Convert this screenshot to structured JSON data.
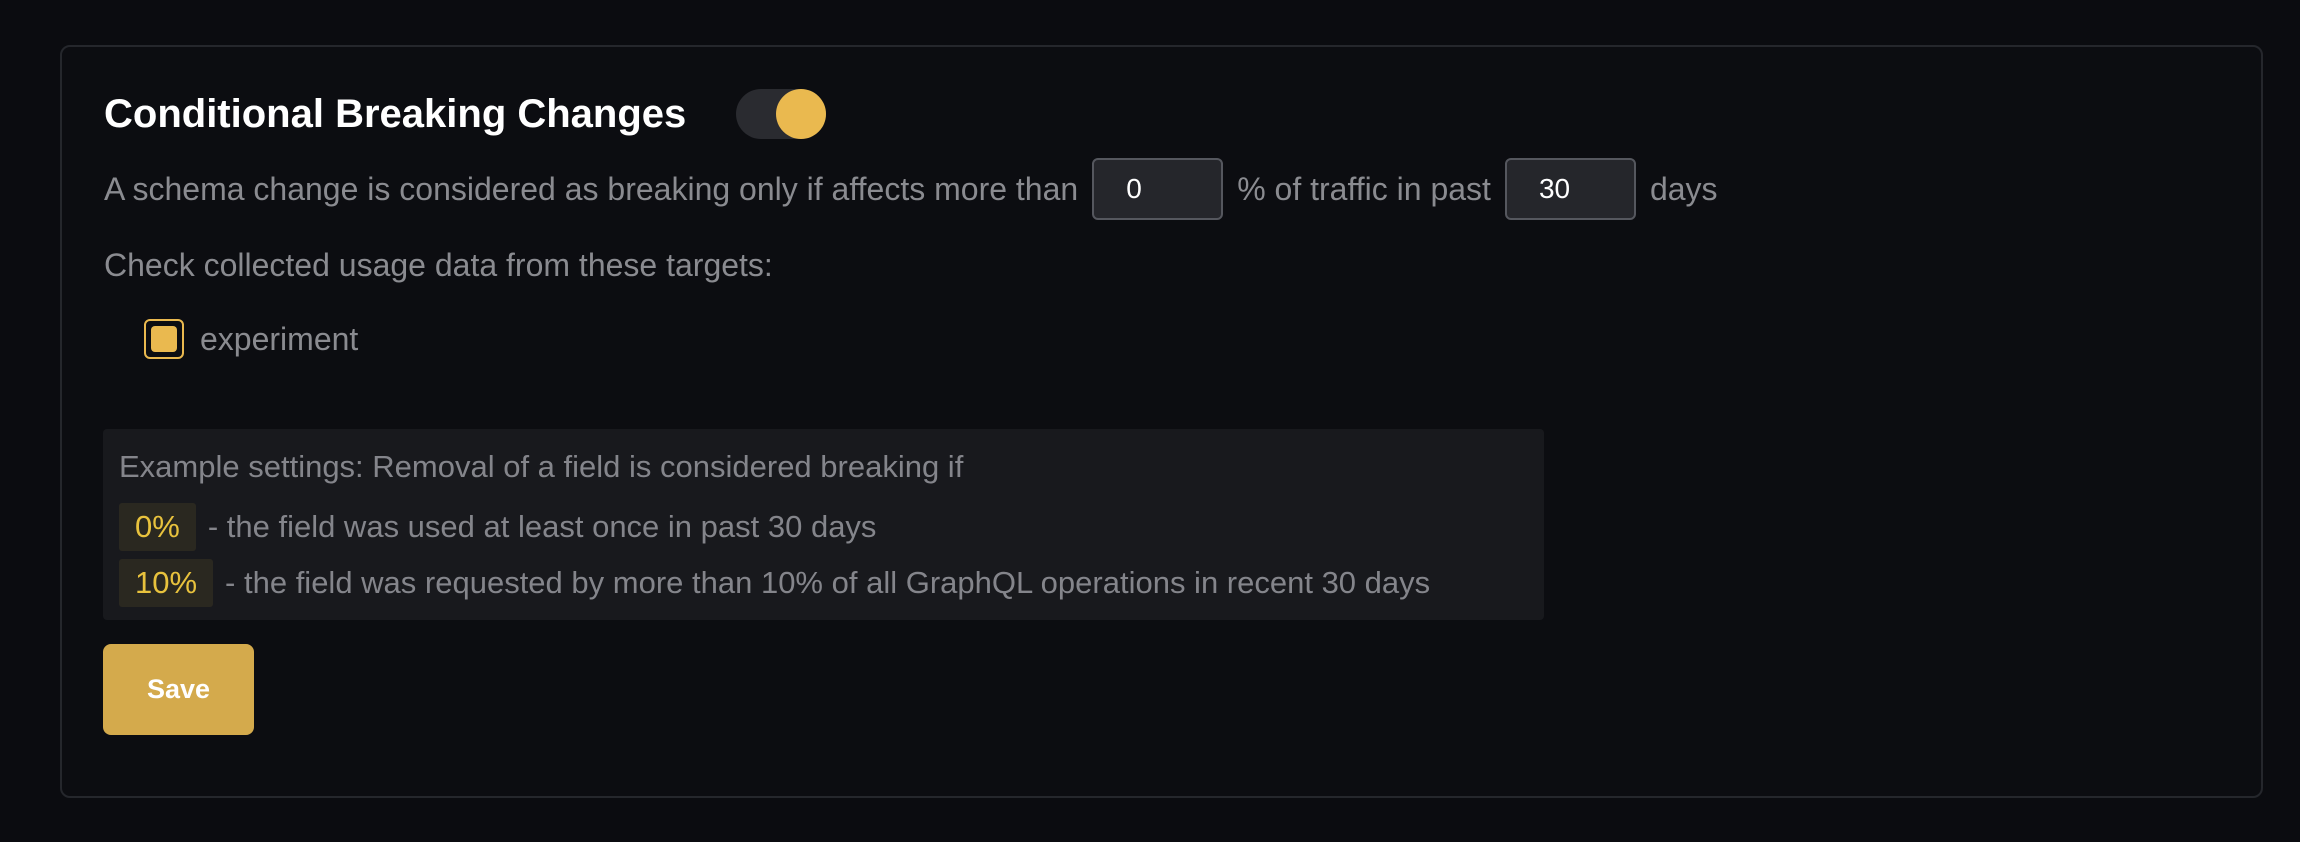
{
  "section": {
    "title": "Conditional Breaking Changes",
    "toggle_enabled": true,
    "accent_color": "#eab94f"
  },
  "rule": {
    "prefix": "A schema change is considered as breaking only if affects more than",
    "percentage_value": "0",
    "middle": "% of traffic in past",
    "days_value": "30",
    "suffix": "days"
  },
  "targets": {
    "label": "Check collected usage data from these targets:",
    "items": [
      {
        "label": "experiment",
        "checked": true
      }
    ]
  },
  "example": {
    "heading": "Example settings: Removal of a field is considered breaking if",
    "lines": [
      {
        "badge": "0%",
        "text": "- the field was used at least once in past 30 days"
      },
      {
        "badge": "10%",
        "text": "- the field was requested by more than 10% of all GraphQL operations in recent 30 days"
      }
    ]
  },
  "save_label": "Save"
}
